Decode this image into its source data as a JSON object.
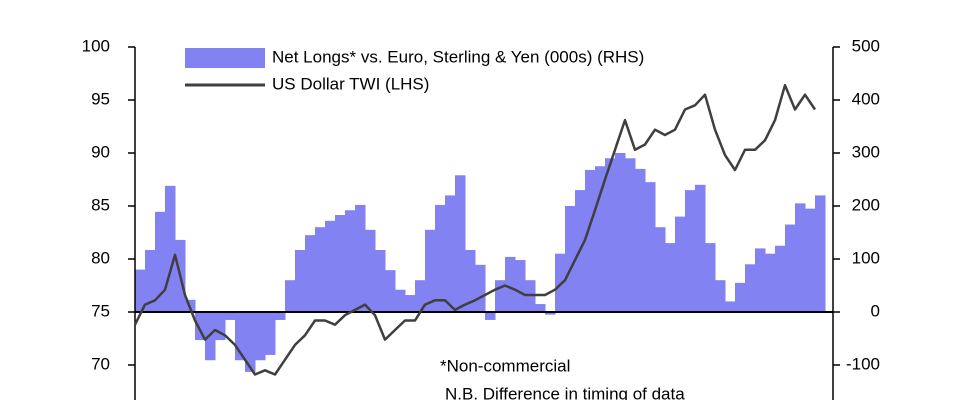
{
  "chart_data": {
    "type": "bar-line",
    "categories": [
      null,
      null,
      null,
      null,
      null,
      null,
      null,
      null,
      null,
      null,
      null,
      null,
      null,
      null,
      null,
      null,
      null,
      null,
      null,
      null,
      null,
      null,
      null,
      null,
      null,
      null,
      null,
      null,
      null,
      null,
      null,
      null,
      null,
      null,
      null,
      null,
      null,
      null,
      null,
      null,
      null,
      null,
      null,
      null,
      null,
      null,
      null,
      null,
      null,
      null,
      null,
      null,
      null,
      null,
      null,
      null,
      null,
      null,
      null,
      null,
      null,
      null,
      null,
      null,
      null,
      null,
      null,
      null,
      null
    ],
    "series": [
      {
        "name": "Net Longs* vs. Euro, Sterling & Yen (000s) (RHS)",
        "type": "bar",
        "axis": "y2",
        "color": "#8282f2",
        "values": [
          80,
          117,
          189,
          238,
          136,
          23,
          -53,
          -91,
          -53,
          -15,
          -91,
          -113,
          -91,
          -81,
          -15,
          60,
          117,
          145,
          160,
          172,
          183,
          192,
          202,
          155,
          117,
          79,
          42,
          32,
          60,
          155,
          202,
          220,
          258,
          117,
          89,
          -15,
          60,
          104,
          98,
          60,
          15,
          -5,
          110,
          200,
          230,
          268,
          275,
          290,
          300,
          290,
          270,
          245,
          160,
          130,
          180,
          230,
          240,
          130,
          60,
          20,
          55,
          90,
          120,
          110,
          125,
          165,
          205,
          195,
          220
        ]
      },
      {
        "name": "US Dollar TWI (LHS)",
        "type": "line",
        "color": "#3f3f3f",
        "values": [
          73.8,
          75.7,
          76.1,
          77.1,
          80.4,
          76.6,
          74.2,
          72.4,
          73.3,
          72.8,
          71.9,
          70.5,
          69.1,
          69.5,
          69.1,
          70.5,
          71.9,
          72.8,
          74.2,
          74.2,
          73.8,
          74.7,
          75.2,
          75.7,
          74.7,
          72.4,
          73.3,
          74.2,
          74.2,
          75.7,
          76.1,
          76.1,
          75.2,
          75.7,
          76.1,
          76.6,
          77.1,
          77.5,
          77.1,
          76.6,
          76.6,
          76.6,
          77.1,
          78.0,
          79.9,
          81.8,
          84.6,
          87.5,
          90.3,
          93.1,
          90.3,
          90.8,
          92.2,
          91.7,
          92.2,
          94.1,
          94.5,
          95.5,
          92.2,
          89.8,
          88.4,
          90.3,
          90.3,
          91.2,
          93.1,
          96.4,
          94.1,
          95.5,
          94.1
        ]
      }
    ],
    "ylim": [
      65,
      100
    ],
    "yticks": [
      70,
      75,
      80,
      85,
      90,
      95,
      100
    ],
    "y2lim": [
      -200,
      500
    ],
    "y2ticks": [
      -100,
      0,
      100,
      200,
      300,
      400,
      500
    ],
    "annotations": [
      "*Non-commercial",
      "N.B. Difference in timing of data"
    ]
  }
}
